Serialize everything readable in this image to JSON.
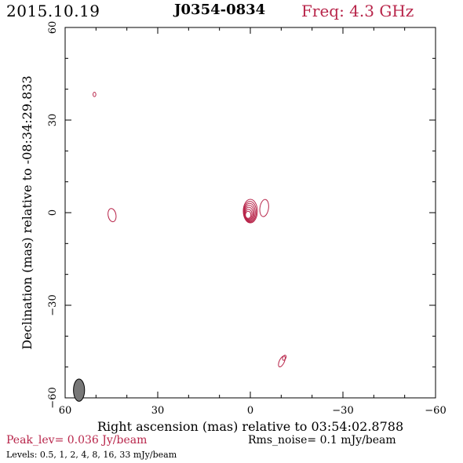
{
  "header": {
    "date": "2015.10.19",
    "source": "J0354-0834",
    "freq": "Freq: 4.3 GHz"
  },
  "chart_data": {
    "type": "contour",
    "xlabel": "Right ascension (mas) relative to 03:54:02.8788",
    "ylabel": "Declination (mas) relative to -08:34:29.833",
    "xlim": [
      60,
      -60
    ],
    "ylim": [
      -60,
      60
    ],
    "xticks": [
      60,
      30,
      0,
      -30,
      -60
    ],
    "yticks": [
      -60,
      -30,
      0,
      30,
      60
    ],
    "xtick_labels": [
      "60",
      "30",
      "0",
      "−30",
      "−60"
    ],
    "ytick_labels": [
      "−60",
      "−30",
      "0",
      "30",
      "60"
    ],
    "contour_color": "#b8254a",
    "levels_mjy": [
      0.5,
      1,
      2,
      4,
      8,
      16,
      33
    ],
    "peak_level": "Peak_lev= 0.036 Jy/beam",
    "rms_noise": "Rms_noise= 0.1 mJy/beam",
    "levels_text": "Levels: 0.5,   1,   2,   4,   8,  16,  33 mJy/beam",
    "core": {
      "x": 0,
      "y": 0
    },
    "features": [
      {
        "name": "core-contours",
        "x": 0,
        "y": 0.5,
        "levels": 7
      },
      {
        "name": "east-blob",
        "x": 44.8,
        "y": -0.8,
        "levels": 1
      },
      {
        "name": "north-blob",
        "x": 50.5,
        "y": 38.3,
        "levels": 1
      },
      {
        "name": "south-blob",
        "x": -10.2,
        "y": -48.2,
        "levels": 1
      },
      {
        "name": "jet-knot",
        "x": -4.5,
        "y": 1.5,
        "levels": 1
      }
    ],
    "beam": {
      "x": 55.5,
      "y": -57.5,
      "major": 3.6,
      "minor": 1.8,
      "pa_deg": 0,
      "fill": "#777777"
    }
  }
}
